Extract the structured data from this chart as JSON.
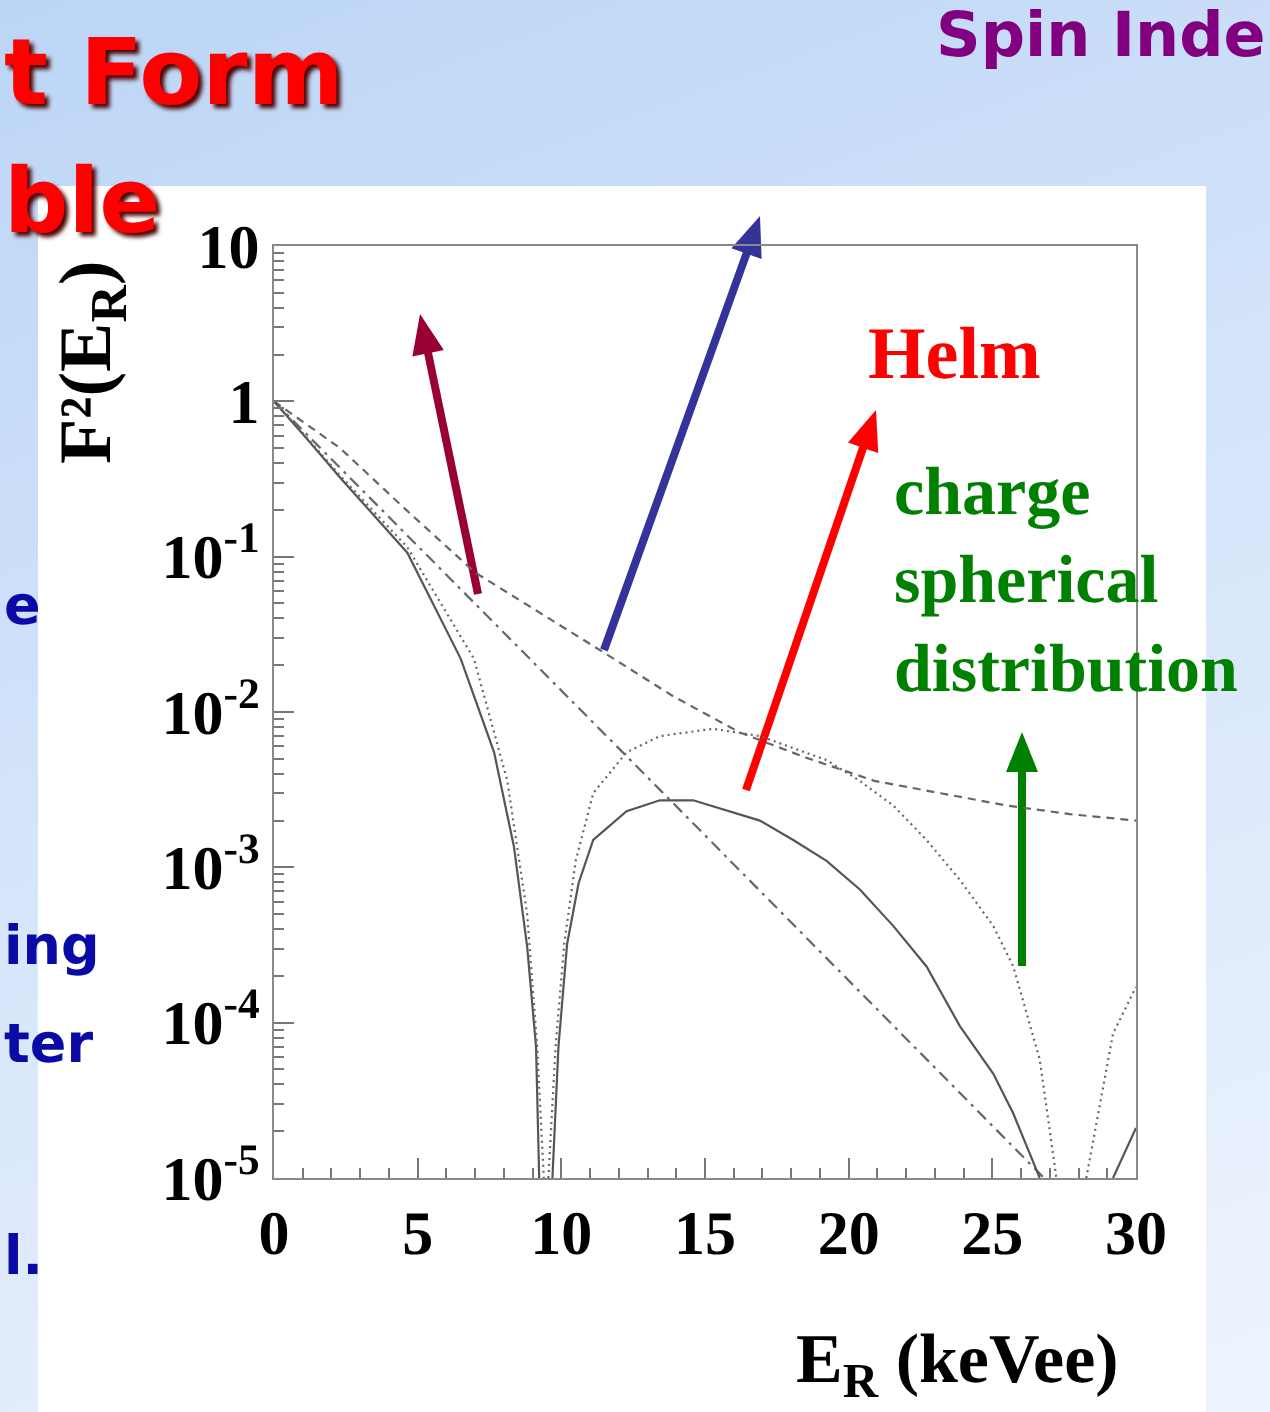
{
  "chart_data": {
    "type": "line",
    "log": "y",
    "xlabel": "E$_{R}$ (keVee)",
    "ylabel": "F²(E$_{R}$)",
    "annotations": [
      "Helm",
      "charge spherical distribution",
      "t Form",
      "ble",
      "Spin Inde",
      "e",
      "ing",
      "ter",
      "l."
    ],
    "xlim": [
      0,
      30
    ],
    "xticks": [
      0,
      {
        "value": 1,
        "label": null
      },
      {
        "value": 2,
        "label": null
      },
      {
        "value": 3,
        "label": null
      },
      {
        "value": 4,
        "label": null
      },
      5,
      {
        "value": 6,
        "label": null
      },
      {
        "value": 7,
        "label": null
      },
      {
        "value": 8,
        "label": null
      },
      {
        "value": 9,
        "label": null
      },
      10,
      {
        "value": 11,
        "label": null
      },
      {
        "value": 12,
        "label": null
      },
      {
        "value": 13,
        "label": null
      },
      {
        "value": 14,
        "label": null
      },
      15,
      {
        "value": 16,
        "label": null
      },
      {
        "value": 17,
        "label": null
      },
      {
        "value": 18,
        "label": null
      },
      {
        "value": 19,
        "label": null
      },
      20,
      {
        "value": 21,
        "label": null
      },
      {
        "value": 22,
        "label": null
      },
      {
        "value": 23,
        "label": null
      },
      {
        "value": 24,
        "label": null
      },
      25,
      {
        "value": 26,
        "label": null
      },
      {
        "value": 27,
        "label": null
      },
      {
        "value": 28,
        "label": null
      },
      {
        "value": 29,
        "label": null
      },
      30
    ],
    "ylim": [
      1e-05,
      10
    ],
    "yticks": [
      {
        "value": 1e-05,
        "label": "10$^{-5}$"
      },
      {
        "value": 2e-05,
        "label": null
      },
      {
        "value": 3e-05,
        "label": null
      },
      {
        "value": 4e-05,
        "label": null
      },
      {
        "value": 5e-05,
        "label": null
      },
      {
        "value": 6e-05,
        "label": null
      },
      {
        "value": 7e-05,
        "label": null
      },
      {
        "value": 8e-05,
        "label": null
      },
      {
        "value": 9e-05,
        "label": null
      },
      {
        "value": 0.0001,
        "label": "10$^{-4}$"
      },
      {
        "value": 0.0002,
        "label": null
      },
      {
        "value": 0.0003,
        "label": null
      },
      {
        "value": 0.0004,
        "label": null
      },
      {
        "value": 0.0005,
        "label": null
      },
      {
        "value": 0.0006,
        "label": null
      },
      {
        "value": 0.0007,
        "label": null
      },
      {
        "value": 0.0008,
        "label": null
      },
      {
        "value": 0.0009,
        "label": null
      },
      {
        "value": 0.001,
        "label": "10$^{-3}$"
      },
      {
        "value": 0.002,
        "label": null
      },
      {
        "value": 0.003,
        "label": null
      },
      {
        "value": 0.004,
        "label": null
      },
      {
        "value": 0.005,
        "label": null
      },
      {
        "value": 0.006,
        "label": null
      },
      {
        "value": 0.007,
        "label": null
      },
      {
        "value": 0.008,
        "label": null
      },
      {
        "value": 0.009,
        "label": null
      },
      {
        "value": 0.01,
        "label": "10$^{-2}$"
      },
      {
        "value": 0.02,
        "label": null
      },
      {
        "value": 0.03,
        "label": null
      },
      {
        "value": 0.04,
        "label": null
      },
      {
        "value": 0.05,
        "label": null
      },
      {
        "value": 0.06,
        "label": null
      },
      {
        "value": 0.07,
        "label": null
      },
      {
        "value": 0.08,
        "label": null
      },
      {
        "value": 0.09,
        "label": null
      },
      {
        "value": 0.1,
        "label": "10$^{-1}$"
      },
      {
        "value": 0.2,
        "label": null
      },
      {
        "value": 0.3,
        "label": null
      },
      {
        "value": 0.4,
        "label": null
      },
      {
        "value": 0.5,
        "label": null
      },
      {
        "value": 0.6,
        "label": null
      },
      {
        "value": 0.7,
        "label": null
      },
      {
        "value": 0.8,
        "label": null
      },
      {
        "value": 0.9,
        "label": null
      },
      1,
      {
        "value": 2,
        "label": null
      },
      {
        "value": 3,
        "label": null
      },
      {
        "value": 4,
        "label": null
      },
      {
        "value": 5,
        "label": null
      },
      {
        "value": 6,
        "label": null
      },
      {
        "value": 7,
        "label": null
      },
      {
        "value": 8,
        "label": null
      },
      {
        "value": 9,
        "label": null
      },
      10
    ],
    "series": [
      {
        "color": "#666666",
        "line_style": "dashed",
        "x": [
          0,
          2.3,
          4.6,
          7,
          9.3,
          11.5,
          13.9,
          16.2,
          18.5,
          20.9,
          23.2,
          25.5,
          27.7,
          30
        ],
        "values": [
          1,
          0.5,
          0.2,
          0.079,
          0.043,
          0.024,
          0.0126,
          0.0074,
          0.0051,
          0.0036,
          0.003,
          0.0025,
          0.0022,
          0.002
        ]
      },
      {
        "color": "#666666",
        "line_style": "dashdot",
        "x": [
          0,
          13.4,
          26.8
        ],
        "values": [
          1,
          0.0032,
          1e-05
        ]
      },
      {
        "color": "#555555",
        "line_style": "solid",
        "x": [
          0,
          1.16,
          2.32,
          4.64,
          6.5,
          7.66,
          8.35,
          8.81,
          9.12,
          9.23,
          9.46,
          9.69,
          9.9,
          10.2,
          10.6,
          11.11,
          12.27,
          13.43,
          14.59,
          16.91,
          18.07,
          19.23,
          20.39,
          21.55,
          22.71,
          23.87,
          25.03,
          25.73,
          26.65,
          27.9,
          29.2,
          30
        ],
        "values": [
          1,
          0.57,
          0.32,
          0.106,
          0.022,
          0.0055,
          0.00136,
          0.00031,
          7e-05,
          1e-05,
          null,
          1e-05,
          7e-05,
          0.00032,
          0.00079,
          0.0015,
          0.0023,
          0.0027,
          0.0027,
          0.002,
          0.0015,
          0.0011,
          0.00072,
          0.00042,
          0.00023,
          9.5e-05,
          4.7e-05,
          2.6e-05,
          1e-05,
          null,
          1e-05,
          2.1e-05
        ]
      },
      {
        "color": "#666666",
        "line_style": "dotted",
        "x": [
          0,
          1.16,
          2.32,
          4.64,
          6.96,
          8.12,
          8.81,
          9.16,
          9.39,
          9.47,
          9.55,
          9.8,
          10.1,
          10.5,
          11.11,
          12.27,
          13.43,
          15.29,
          16.91,
          19.23,
          20.39,
          21.55,
          22.71,
          23.87,
          25.03,
          25.73,
          26.65,
          27.23,
          27.75,
          28.27,
          29.2,
          30
        ],
        "values": [
          1,
          0.58,
          0.33,
          0.115,
          0.022,
          0.0036,
          0.0005,
          7e-05,
          1e-05,
          null,
          1e-05,
          7e-05,
          0.00032,
          0.0011,
          0.003,
          0.0055,
          0.007,
          0.0078,
          0.007,
          0.0049,
          0.0036,
          0.0025,
          0.0015,
          0.00083,
          0.00042,
          0.00023,
          5.8e-05,
          1e-05,
          null,
          1e-05,
          8.5e-05,
          0.00017
        ]
      }
    ]
  }
}
